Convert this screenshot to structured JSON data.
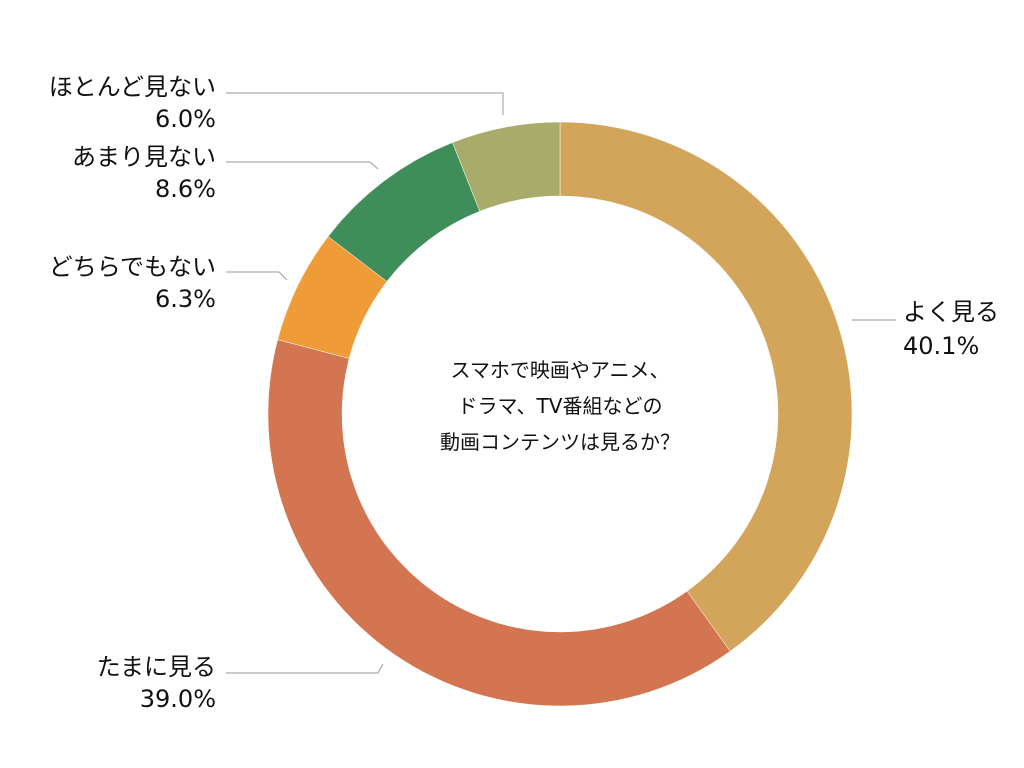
{
  "chart_data": {
    "type": "pie",
    "title": "スマホで映画やアニメ、ドラマ、TV番組などの動画コンテンツは見るか？",
    "slices": [
      {
        "label": "よく見る",
        "value": 40.1,
        "value_text": "40.1%",
        "color": "#D3A55A"
      },
      {
        "label": "たまに見る",
        "value": 39.0,
        "value_text": "39.0%",
        "color": "#D27550"
      },
      {
        "label": "どちらでもない",
        "value": 6.3,
        "value_text": "6.3%",
        "color": "#EF9C38"
      },
      {
        "label": "あまり見ない",
        "value": 8.6,
        "value_text": "8.6%",
        "color": "#3F8E5A"
      },
      {
        "label": "ほとんど見ない",
        "value": 6.0,
        "value_text": "6.0%",
        "color": "#A9AB6A"
      }
    ],
    "legend": "none",
    "labels": "outside-with-leader-lines"
  },
  "center_text": {
    "line1": "スマホで映画やアニメ、",
    "line2": "ドラマ、TV番組などの",
    "line3": "動画コンテンツは見るか？"
  }
}
